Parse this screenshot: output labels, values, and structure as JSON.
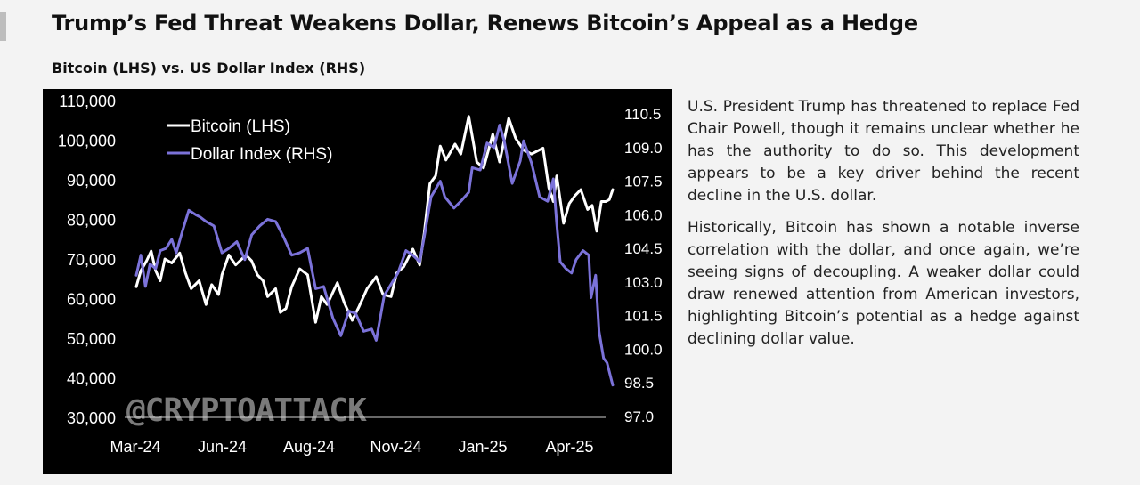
{
  "header": {
    "title": "Trump’s Fed Threat Weakens Dollar, Renews Bitcoin’s Appeal as a Hedge",
    "subtitle": "Bitcoin (LHS) vs. US Dollar Index (RHS)"
  },
  "description": {
    "paragraphs": [
      "U.S. President Trump has threatened to replace Fed Chair Powell, though it remains unclear whether he has the authority to do so. This development appears to be a key driver behind the recent decline in the U.S. dollar.",
      "Historically, Bitcoin has shown a notable inverse correlation with the dollar, and once again, we’re seeing signs of decoupling. A weaker dollar could draw renewed attention from American investors, highlighting Bitcoin’s potential as a hedge against declining dollar value."
    ]
  },
  "watermark": "@CRYPTOATTACK",
  "colors": {
    "background": "#f3f3f3",
    "chart_background": "#000000",
    "bitcoin": "#ffffff",
    "dollar": "#7b72d9"
  },
  "chart_data": {
    "type": "line",
    "legend_position": "top-left",
    "grid": false,
    "x_ticks": [
      "Mar-24",
      "Jun-24",
      "Aug-24",
      "Nov-24",
      "Jan-25",
      "Apr-25"
    ],
    "x_range": [
      "2024-03-01",
      "2025-04-22"
    ],
    "y_left": {
      "range": [
        30000,
        110000
      ],
      "ticks": [
        "30,000",
        "40,000",
        "50,000",
        "60,000",
        "70,000",
        "80,000",
        "90,000",
        "100,000",
        "110,000"
      ]
    },
    "y_right": {
      "range": [
        97.0,
        110.5
      ],
      "ticks": [
        "97.0",
        "98.5",
        "100.0",
        "101.5",
        "103.0",
        "104.5",
        "106.0",
        "107.5",
        "109.0",
        "110.5"
      ]
    },
    "series": [
      {
        "name": "Bitcoin (LHS)",
        "axis": "left",
        "color": "#ffffff",
        "points": [
          [
            "2024-03-01",
            63000
          ],
          [
            "2024-03-05",
            67000
          ],
          [
            "2024-03-10",
            69500
          ],
          [
            "2024-03-14",
            72000
          ],
          [
            "2024-03-18",
            67000
          ],
          [
            "2024-03-22",
            64500
          ],
          [
            "2024-03-26",
            70000
          ],
          [
            "2024-04-01",
            69000
          ],
          [
            "2024-04-08",
            71500
          ],
          [
            "2024-04-13",
            66500
          ],
          [
            "2024-04-18",
            62500
          ],
          [
            "2024-04-25",
            64500
          ],
          [
            "2024-05-01",
            58500
          ],
          [
            "2024-05-06",
            63500
          ],
          [
            "2024-05-12",
            61000
          ],
          [
            "2024-05-15",
            66000
          ],
          [
            "2024-05-21",
            71000
          ],
          [
            "2024-05-27",
            68500
          ],
          [
            "2024-06-05",
            71000
          ],
          [
            "2024-06-10",
            69500
          ],
          [
            "2024-06-15",
            66000
          ],
          [
            "2024-06-20",
            64500
          ],
          [
            "2024-06-24",
            60500
          ],
          [
            "2024-07-01",
            62500
          ],
          [
            "2024-07-05",
            56500
          ],
          [
            "2024-07-10",
            57500
          ],
          [
            "2024-07-15",
            63000
          ],
          [
            "2024-07-22",
            67500
          ],
          [
            "2024-07-29",
            66000
          ],
          [
            "2024-08-05",
            54000
          ],
          [
            "2024-08-10",
            60500
          ],
          [
            "2024-08-15",
            58500
          ],
          [
            "2024-08-24",
            64000
          ],
          [
            "2024-08-30",
            59000
          ],
          [
            "2024-09-06",
            54500
          ],
          [
            "2024-09-12",
            58000
          ],
          [
            "2024-09-19",
            62500
          ],
          [
            "2024-09-27",
            65500
          ],
          [
            "2024-10-03",
            61000
          ],
          [
            "2024-10-10",
            60500
          ],
          [
            "2024-10-15",
            66500
          ],
          [
            "2024-10-21",
            68000
          ],
          [
            "2024-10-29",
            72500
          ],
          [
            "2024-11-04",
            68500
          ],
          [
            "2024-11-08",
            76500
          ],
          [
            "2024-11-13",
            89000
          ],
          [
            "2024-11-18",
            91000
          ],
          [
            "2024-11-22",
            98500
          ],
          [
            "2024-11-27",
            95000
          ],
          [
            "2024-12-05",
            99000
          ],
          [
            "2024-12-10",
            96500
          ],
          [
            "2024-12-17",
            106000
          ],
          [
            "2024-12-24",
            94500
          ],
          [
            "2024-12-30",
            93000
          ],
          [
            "2025-01-07",
            101500
          ],
          [
            "2025-01-13",
            94500
          ],
          [
            "2025-01-21",
            105500
          ],
          [
            "2025-01-27",
            100500
          ],
          [
            "2025-02-03",
            97500
          ],
          [
            "2025-02-10",
            96500
          ],
          [
            "2025-02-20",
            98000
          ],
          [
            "2025-02-25",
            88000
          ],
          [
            "2025-03-01",
            84500
          ],
          [
            "2025-03-04",
            91000
          ],
          [
            "2025-03-10",
            79000
          ],
          [
            "2025-03-15",
            84000
          ],
          [
            "2025-03-20",
            86000
          ],
          [
            "2025-03-25",
            87500
          ],
          [
            "2025-03-31",
            82500
          ],
          [
            "2025-04-04",
            83500
          ],
          [
            "2025-04-08",
            77000
          ],
          [
            "2025-04-12",
            84500
          ],
          [
            "2025-04-16",
            84500
          ],
          [
            "2025-04-19",
            85000
          ],
          [
            "2025-04-22",
            87500
          ]
        ]
      },
      {
        "name": "Dollar Index (RHS)",
        "axis": "right",
        "color": "#7b72d9",
        "points": [
          [
            "2024-03-01",
            103.3
          ],
          [
            "2024-03-05",
            104.2
          ],
          [
            "2024-03-09",
            102.8
          ],
          [
            "2024-03-13",
            103.8
          ],
          [
            "2024-03-18",
            103.6
          ],
          [
            "2024-03-22",
            104.4
          ],
          [
            "2024-03-27",
            104.5
          ],
          [
            "2024-04-01",
            104.9
          ],
          [
            "2024-04-05",
            104.3
          ],
          [
            "2024-04-10",
            105.2
          ],
          [
            "2024-04-16",
            106.2
          ],
          [
            "2024-04-22",
            106.0
          ],
          [
            "2024-04-26",
            105.9
          ],
          [
            "2024-05-01",
            105.7
          ],
          [
            "2024-05-08",
            105.5
          ],
          [
            "2024-05-15",
            104.3
          ],
          [
            "2024-05-21",
            104.5
          ],
          [
            "2024-05-28",
            104.8
          ],
          [
            "2024-06-04",
            104.0
          ],
          [
            "2024-06-10",
            105.1
          ],
          [
            "2024-06-17",
            105.5
          ],
          [
            "2024-06-24",
            105.8
          ],
          [
            "2024-07-01",
            105.7
          ],
          [
            "2024-07-08",
            105.0
          ],
          [
            "2024-07-15",
            104.2
          ],
          [
            "2024-07-22",
            104.3
          ],
          [
            "2024-07-29",
            104.5
          ],
          [
            "2024-08-05",
            102.7
          ],
          [
            "2024-08-12",
            102.8
          ],
          [
            "2024-08-20",
            101.4
          ],
          [
            "2024-08-27",
            100.6
          ],
          [
            "2024-09-03",
            101.7
          ],
          [
            "2024-09-09",
            101.6
          ],
          [
            "2024-09-16",
            100.8
          ],
          [
            "2024-09-23",
            100.9
          ],
          [
            "2024-09-27",
            100.4
          ],
          [
            "2024-10-04",
            102.4
          ],
          [
            "2024-10-10",
            102.9
          ],
          [
            "2024-10-16",
            103.4
          ],
          [
            "2024-10-23",
            104.4
          ],
          [
            "2024-10-29",
            104.2
          ],
          [
            "2024-11-04",
            103.9
          ],
          [
            "2024-11-08",
            105.0
          ],
          [
            "2024-11-14",
            106.8
          ],
          [
            "2024-11-22",
            107.5
          ],
          [
            "2024-11-26",
            106.8
          ],
          [
            "2024-12-04",
            106.3
          ],
          [
            "2024-12-10",
            106.6
          ],
          [
            "2024-12-17",
            107.0
          ],
          [
            "2024-12-20",
            108.1
          ],
          [
            "2024-12-27",
            108.0
          ],
          [
            "2025-01-02",
            109.2
          ],
          [
            "2025-01-08",
            109.0
          ],
          [
            "2025-01-13",
            110.0
          ],
          [
            "2025-01-17",
            109.3
          ],
          [
            "2025-01-24",
            107.4
          ],
          [
            "2025-01-31",
            108.4
          ],
          [
            "2025-02-03",
            109.3
          ],
          [
            "2025-02-10",
            108.3
          ],
          [
            "2025-02-17",
            106.8
          ],
          [
            "2025-02-24",
            106.6
          ],
          [
            "2025-03-01",
            107.6
          ],
          [
            "2025-03-04",
            105.6
          ],
          [
            "2025-03-07",
            103.9
          ],
          [
            "2025-03-12",
            103.6
          ],
          [
            "2025-03-17",
            103.4
          ],
          [
            "2025-03-21",
            104.0
          ],
          [
            "2025-03-27",
            104.4
          ],
          [
            "2025-04-01",
            104.2
          ],
          [
            "2025-04-03",
            102.3
          ],
          [
            "2025-04-07",
            103.3
          ],
          [
            "2025-04-10",
            100.8
          ],
          [
            "2025-04-14",
            99.6
          ],
          [
            "2025-04-17",
            99.4
          ],
          [
            "2025-04-22",
            98.4
          ]
        ]
      }
    ]
  }
}
